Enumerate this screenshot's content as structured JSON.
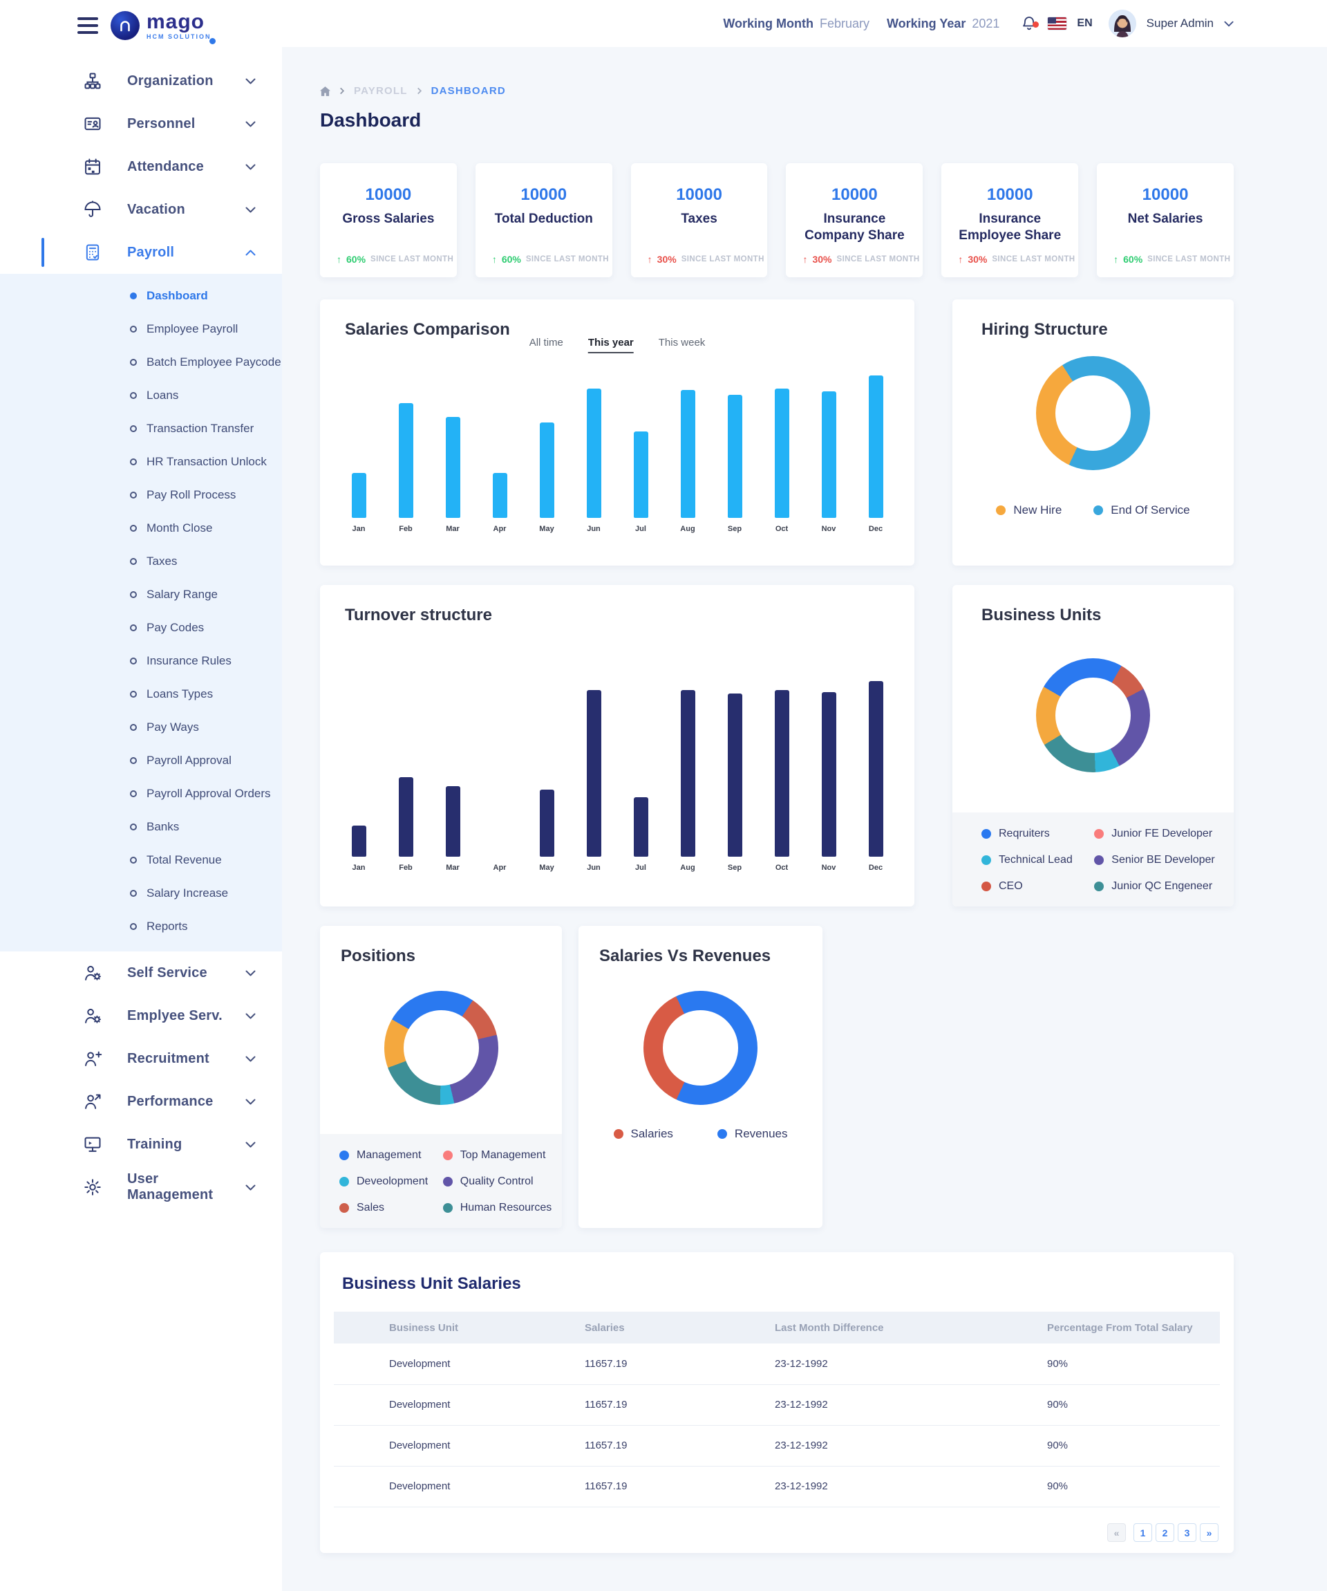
{
  "brand": {
    "name": "mago",
    "tagline": "HCM SOLUTION"
  },
  "header": {
    "working_month_label": "Working Month",
    "working_month_value": "February",
    "working_year_label": "Working Year",
    "working_year_value": "2021",
    "language": "EN",
    "user_name": "Super Admin"
  },
  "breadcrumb": {
    "section": "PAYROLL",
    "page": "DASHBOARD"
  },
  "page_title": "Dashboard",
  "sidebar": {
    "items": [
      {
        "label": "Organization",
        "icon": "org-chart"
      },
      {
        "label": "Personnel",
        "icon": "id-card"
      },
      {
        "label": "Attendance",
        "icon": "calendar"
      },
      {
        "label": "Vacation",
        "icon": "umbrella"
      },
      {
        "label": "Payroll",
        "icon": "calculator",
        "active": true,
        "expanded": true,
        "active_child": "Dashboard",
        "children": [
          "Dashboard",
          "Employee Payroll",
          "Batch Employee Paycode",
          "Loans",
          "Transaction Transfer",
          "HR Transaction Unlock",
          "Pay Roll Process",
          "Month Close",
          "Taxes",
          "Salary Range",
          "Pay Codes",
          "Insurance Rules",
          "Loans Types",
          "Pay Ways",
          "Payroll Approval",
          "Payroll Approval Orders",
          "Banks",
          "Total Revenue",
          "Salary Increase",
          "Reports"
        ]
      },
      {
        "label": "Self Service",
        "icon": "person-gear"
      },
      {
        "label": "Emplyee Serv.",
        "icon": "person-gear"
      },
      {
        "label": "Recruitment",
        "icon": "person-plus"
      },
      {
        "label": "Performance",
        "icon": "person-up"
      },
      {
        "label": "Training",
        "icon": "screen"
      },
      {
        "label": "User Management",
        "icon": "gear"
      }
    ]
  },
  "stats": [
    {
      "value": "10000",
      "label": "Gross Salaries",
      "delta": "60%",
      "note": "SINCE LAST MONTH",
      "trend": "up",
      "tone": "green"
    },
    {
      "value": "10000",
      "label": "Total Deduction",
      "delta": "60%",
      "note": "SINCE LAST MONTH",
      "trend": "up",
      "tone": "green"
    },
    {
      "value": "10000",
      "label": "Taxes",
      "delta": "30%",
      "note": "SINCE LAST MONTH",
      "trend": "up",
      "tone": "red"
    },
    {
      "value": "10000",
      "label": "Insurance Company Share",
      "delta": "30%",
      "note": "SINCE LAST MONTH",
      "trend": "up",
      "tone": "red"
    },
    {
      "value": "10000",
      "label": "Insurance Employee Share",
      "delta": "30%",
      "note": "SINCE LAST MONTH",
      "trend": "up",
      "tone": "red"
    },
    {
      "value": "10000",
      "label": "Net Salaries",
      "delta": "60%",
      "note": "SINCE LAST MONTH",
      "trend": "up",
      "tone": "green"
    }
  ],
  "chart_data": [
    {
      "id": "salaries_comparison",
      "type": "bar",
      "title": "Salaries Comparison",
      "tabs": [
        "All time",
        "This year",
        "This week"
      ],
      "active_tab": "This year",
      "categories": [
        "Jan",
        "Feb",
        "Mar",
        "Apr",
        "May",
        "Jun",
        "Jul",
        "Aug",
        "Sep",
        "Oct",
        "Nov",
        "Dec"
      ],
      "values": [
        30,
        77,
        68,
        30,
        64,
        87,
        58,
        86,
        83,
        87,
        85,
        96
      ],
      "bar_color": "#23B2F6",
      "ylim": [
        0,
        100
      ],
      "grid": false,
      "xlabel": "",
      "ylabel": ""
    },
    {
      "id": "hiring_structure",
      "type": "donut",
      "title": "Hiring Structure",
      "rotation": 205,
      "slices": [
        {
          "label": "New Hire",
          "color": "#F6A83D",
          "value": 34
        },
        {
          "label": "End Of Service",
          "color": "#38A7DD",
          "value": 66
        }
      ],
      "legend_position": "bottom"
    },
    {
      "id": "turnover_structure",
      "type": "bar",
      "title": "Turnover structure",
      "categories": [
        "Jan",
        "Feb",
        "Mar",
        "Apr",
        "May",
        "Jun",
        "Jul",
        "Aug",
        "Sep",
        "Oct",
        "Nov",
        "Dec"
      ],
      "values": [
        17,
        44,
        39,
        0,
        37,
        92,
        33,
        92,
        90,
        92,
        91,
        97
      ],
      "bar_color": "#272E6E",
      "ylim": [
        0,
        100
      ],
      "grid": false,
      "xlabel": "",
      "ylabel": ""
    },
    {
      "id": "business_units",
      "type": "donut",
      "title": "Business Units",
      "rotation": 300,
      "slices": [
        {
          "color": "#2A79F0",
          "value": 25
        },
        {
          "color": "#CE5F4B",
          "value": 9
        },
        {
          "color": "#6155A8",
          "value": 25
        },
        {
          "color": "#31B5DA",
          "value": 7
        },
        {
          "color": "#3D8F96",
          "value": 17
        },
        {
          "color": "#F4A83E",
          "value": 17
        }
      ],
      "legend": [
        {
          "label": "Reqruiters",
          "color": "#2A79F0"
        },
        {
          "label": "Junior FE Developer",
          "color": "#F97C7C"
        },
        {
          "label": "Technical Lead",
          "color": "#31B5DA"
        },
        {
          "label": "Senior BE Developer",
          "color": "#6155A8"
        },
        {
          "label": "CEO",
          "color": "#D45744"
        },
        {
          "label": "Junior QC Engeneer",
          "color": "#3D8F96"
        }
      ],
      "legend_position": "bottom"
    },
    {
      "id": "positions",
      "type": "donut",
      "title": "Positions",
      "rotation": 300,
      "slices": [
        {
          "color": "#2A79F0",
          "value": 26
        },
        {
          "color": "#CE5F4B",
          "value": 12
        },
        {
          "color": "#6155A8",
          "value": 25
        },
        {
          "color": "#31B5DA",
          "value": 4
        },
        {
          "color": "#3D8F96",
          "value": 19
        },
        {
          "color": "#F4A83E",
          "value": 14
        }
      ],
      "legend": [
        {
          "label": "Management",
          "color": "#2A79F0"
        },
        {
          "label": "Top Management",
          "color": "#F97C7C"
        },
        {
          "label": "Deveolopment",
          "color": "#31B5DA"
        },
        {
          "label": "Quality Control",
          "color": "#6155A8"
        },
        {
          "label": "Sales",
          "color": "#CE5F4B"
        },
        {
          "label": "Human Resources",
          "color": "#3D8F96"
        }
      ],
      "legend_position": "bottom"
    },
    {
      "id": "salaries_vs_revenues",
      "type": "donut",
      "title": "Salaries Vs Revenues",
      "rotation": 205,
      "slices": [
        {
          "label": "Salaries",
          "color": "#D85B45",
          "value": 36
        },
        {
          "label": "Revenues",
          "color": "#2A79F0",
          "value": 64
        }
      ],
      "legend": [
        {
          "label": "Salaries",
          "color": "#D85B45"
        },
        {
          "label": "Revenues",
          "color": "#2A79F0"
        }
      ],
      "legend_position": "bottom"
    }
  ],
  "table": {
    "title": "Business Unit Salaries",
    "columns": [
      "Business Unit",
      "Salaries",
      "Last Month Difference",
      "Percentage From Total Salary"
    ],
    "rows": [
      [
        "Development",
        "11657.19",
        "23-12-1992",
        "90%"
      ],
      [
        "Development",
        "11657.19",
        "23-12-1992",
        "90%"
      ],
      [
        "Development",
        "11657.19",
        "23-12-1992",
        "90%"
      ],
      [
        "Development",
        "11657.19",
        "23-12-1992",
        "90%"
      ]
    ],
    "pagination": {
      "first": "«",
      "pages": [
        "1",
        "2",
        "3"
      ],
      "last": "»"
    }
  }
}
